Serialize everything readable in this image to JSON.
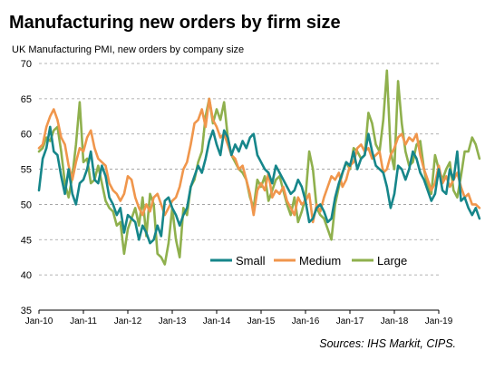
{
  "page": {
    "title": "Manufacturing new orders by firm size",
    "subtitle": "UK Manufacturing PMI, new orders by company size",
    "source": "Sources: IHS Markit, CIPS."
  },
  "chart_data": {
    "type": "line",
    "title": "Manufacturing new orders by firm size",
    "subtitle": "UK Manufacturing PMI, new orders by company size",
    "xlabel": "",
    "ylabel": "",
    "ylim": [
      35,
      70
    ],
    "yticks": [
      35,
      40,
      45,
      50,
      55,
      60,
      65,
      70
    ],
    "xticks": [
      "Jan-10",
      "Jan-11",
      "Jan-12",
      "Jan-13",
      "Jan-14",
      "Jan-15",
      "Jan-16",
      "Jan-17",
      "Jan-18",
      "Jan-19"
    ],
    "x_start": "Jan-10",
    "x_end": "Jan-19",
    "grid": "horizontal dashed",
    "legend_position": "bottom-center",
    "series": [
      {
        "name": "Small",
        "color": "#16868a",
        "values": [
          52.0,
          56.5,
          58.0,
          61.0,
          57.5,
          57.0,
          54.0,
          51.5,
          55.0,
          51.5,
          50.0,
          53.0,
          53.5,
          55.0,
          57.5,
          53.5,
          53.0,
          55.5,
          54.0,
          51.0,
          50.0,
          48.5,
          49.5,
          46.0,
          48.5,
          48.0,
          47.5,
          45.0,
          47.0,
          46.0,
          44.5,
          45.0,
          47.0,
          45.5,
          50.5,
          51.0,
          49.5,
          48.5,
          47.0,
          48.5,
          49.5,
          52.5,
          54.0,
          55.5,
          54.5,
          56.5,
          59.0,
          60.5,
          58.5,
          57.0,
          60.5,
          59.5,
          57.0,
          58.5,
          57.5,
          59.0,
          58.0,
          59.5,
          60.0,
          57.0,
          56.0,
          55.0,
          54.5,
          53.0,
          55.5,
          54.5,
          53.5,
          52.5,
          51.5,
          52.0,
          53.5,
          52.5,
          50.5,
          47.5,
          48.0,
          49.5,
          50.0,
          49.0,
          47.5,
          48.0,
          51.0,
          53.0,
          54.5,
          56.0,
          55.5,
          57.5,
          55.0,
          56.5,
          57.0,
          60.0,
          57.5,
          55.5,
          55.0,
          54.5,
          52.5,
          49.5,
          51.5,
          55.5,
          55.0,
          53.5,
          55.0,
          57.5,
          56.5,
          54.5,
          53.5,
          52.0,
          50.5,
          51.5,
          55.0,
          52.0,
          51.5,
          55.0,
          53.5,
          57.5,
          50.5,
          51.0,
          49.5,
          48.5,
          49.5,
          48.0
        ]
      },
      {
        "name": "Medium",
        "color": "#f0964c",
        "values": [
          58.0,
          58.5,
          61.0,
          62.5,
          63.5,
          62.0,
          59.5,
          58.5,
          55.5,
          53.5,
          56.0,
          58.0,
          57.5,
          59.5,
          60.5,
          58.0,
          56.5,
          56.0,
          55.5,
          53.0,
          52.0,
          51.5,
          50.5,
          51.5,
          54.0,
          53.5,
          51.0,
          49.5,
          48.5,
          50.0,
          49.0,
          51.0,
          51.5,
          50.0,
          48.5,
          49.5,
          50.5,
          51.0,
          52.5,
          55.0,
          56.0,
          58.5,
          61.5,
          62.0,
          63.5,
          61.0,
          65.0,
          62.0,
          61.0,
          59.5,
          60.0,
          58.5,
          57.0,
          56.5,
          55.0,
          55.5,
          53.5,
          51.5,
          48.5,
          52.0,
          53.0,
          52.0,
          54.5,
          51.0,
          52.0,
          51.5,
          52.5,
          50.5,
          49.5,
          48.5,
          51.0,
          50.0,
          50.5,
          51.5,
          47.5,
          50.0,
          49.0,
          51.0,
          52.5,
          54.0,
          53.5,
          54.5,
          52.5,
          53.5,
          55.5,
          56.0,
          58.0,
          58.5,
          57.5,
          58.0,
          56.5,
          57.0,
          57.5,
          54.5,
          55.0,
          57.0,
          58.0,
          59.5,
          60.0,
          58.5,
          59.5,
          59.0,
          60.0,
          57.0,
          55.0,
          53.5,
          52.0,
          53.0,
          55.5,
          53.0,
          54.0,
          52.5,
          53.5,
          54.5,
          52.5,
          51.0,
          51.5,
          50.0,
          50.0,
          49.5
        ]
      },
      {
        "name": "Large",
        "color": "#8fb04d",
        "values": [
          57.5,
          58.0,
          59.5,
          59.0,
          60.5,
          61.0,
          57.5,
          53.0,
          51.0,
          54.0,
          58.5,
          64.5,
          56.0,
          56.5,
          53.0,
          53.5,
          55.5,
          53.0,
          50.5,
          49.5,
          49.0,
          47.0,
          47.5,
          43.0,
          46.5,
          48.0,
          49.5,
          47.0,
          51.0,
          45.5,
          51.5,
          50.0,
          43.0,
          42.5,
          41.5,
          44.5,
          49.5,
          45.0,
          42.5,
          49.5,
          48.5,
          52.5,
          53.5,
          56.0,
          57.5,
          62.5,
          65.0,
          61.5,
          63.5,
          62.0,
          64.5,
          59.5,
          57.0,
          56.0,
          55.0,
          54.5,
          53.5,
          51.0,
          49.5,
          53.5,
          52.5,
          54.0,
          50.5,
          52.0,
          53.5,
          54.0,
          52.0,
          50.0,
          48.5,
          51.0,
          47.5,
          49.0,
          51.0,
          57.5,
          55.0,
          49.5,
          48.5,
          48.0,
          46.5,
          45.0,
          50.0,
          52.5,
          54.5,
          56.0,
          55.0,
          58.0,
          57.5,
          56.5,
          57.0,
          63.0,
          61.5,
          58.5,
          57.5,
          62.0,
          69.0,
          57.5,
          55.0,
          67.5,
          61.5,
          57.5,
          55.5,
          56.0,
          58.5,
          59.0,
          55.0,
          52.5,
          51.5,
          57.0,
          55.0,
          53.5,
          55.0,
          56.0,
          52.0,
          51.0,
          54.0,
          57.5,
          57.5,
          59.5,
          58.5,
          56.5
        ]
      }
    ]
  }
}
